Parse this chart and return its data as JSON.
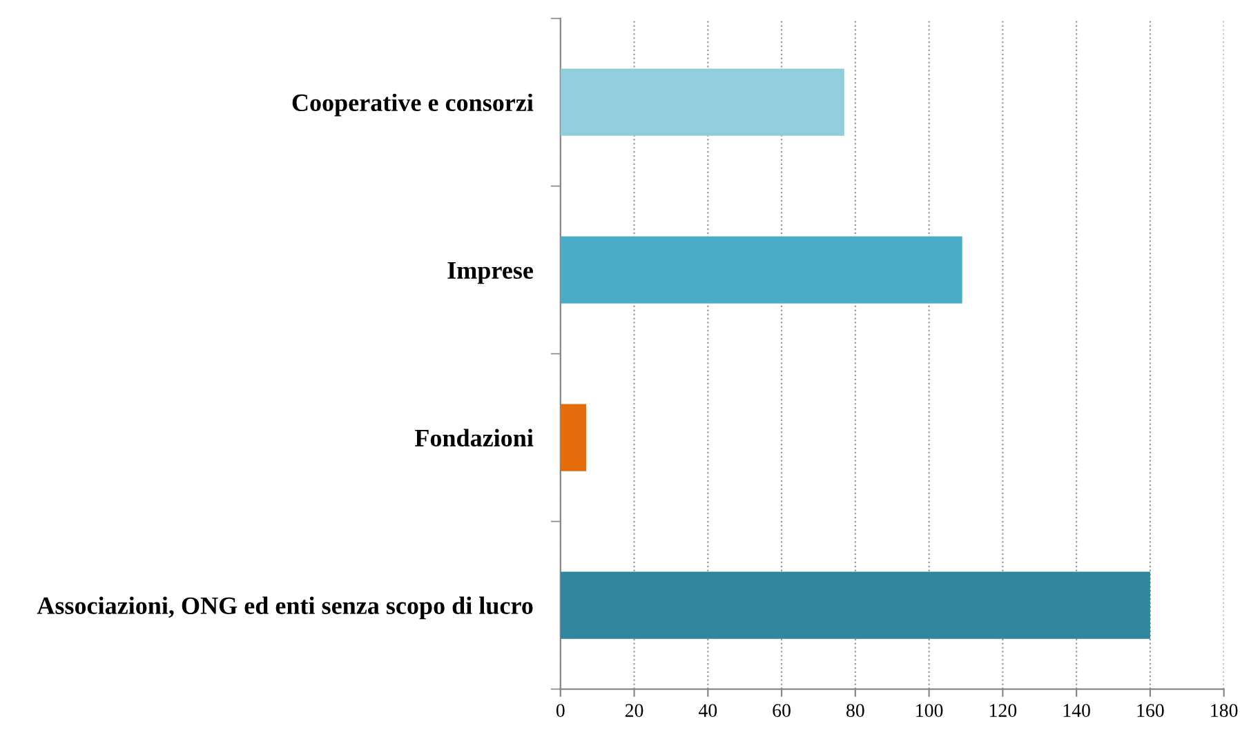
{
  "chart_data": {
    "type": "bar",
    "orientation": "horizontal",
    "categories": [
      "Cooperative e consorzi",
      "Imprese",
      "Fondazioni",
      "Associazioni, ONG ed enti senza scopo di lucro"
    ],
    "values": [
      77,
      109,
      7,
      160
    ],
    "colors": [
      "#92cddc",
      "#4bacc6",
      "#e46c0a",
      "#31859c"
    ],
    "xlim": [
      0,
      180
    ],
    "xticks": [
      0,
      20,
      40,
      60,
      80,
      100,
      120,
      140,
      160,
      180
    ],
    "grid": "x",
    "legend": false
  }
}
